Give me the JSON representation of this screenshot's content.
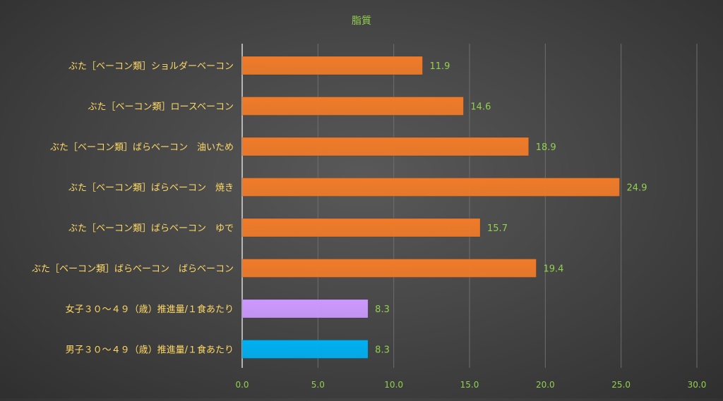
{
  "chart_data": {
    "type": "bar",
    "orientation": "horizontal",
    "title": "脂質",
    "xlabel": "",
    "ylabel": "",
    "xlim": [
      0,
      30
    ],
    "x_ticks": [
      "0.0",
      "5.0",
      "10.0",
      "15.0",
      "20.0",
      "25.0",
      "30.0"
    ],
    "grid": true,
    "legend": "none",
    "categories": [
      "ぶた［ベーコン類］ショルダーベーコン",
      "ぶた［ベーコン類］ロースベーコン",
      "ぶた［ベーコン類］ばらベーコン　油いため",
      "ぶた［ベーコン類］ばらベーコン　焼き",
      "ぶた［ベーコン類］ばらベーコン　ゆで",
      "ぶた［ベーコン類］ばらベーコン　ばらベーコン",
      "女子３０～４９（歳）推進量/１食あたり",
      "男子３０～４９（歳）推進量/１食あたり"
    ],
    "values": [
      11.9,
      14.6,
      18.9,
      24.9,
      15.7,
      19.4,
      8.3,
      8.3
    ],
    "value_labels": [
      "11.9",
      "14.6",
      "18.9",
      "24.9",
      "15.7",
      "19.4",
      "8.3",
      "8.3"
    ],
    "bar_colors": [
      "#f07b29",
      "#f07b29",
      "#f07b29",
      "#f07b29",
      "#f07b29",
      "#f07b29",
      "#cc99ff",
      "#00b0f0"
    ],
    "colors": {
      "title": "#92d050",
      "category_label": "#ffd966",
      "tick_label": "#92d050",
      "value_label": "#92d050",
      "grid": "#6e6e6e",
      "axis": "#d9d9d9"
    }
  }
}
